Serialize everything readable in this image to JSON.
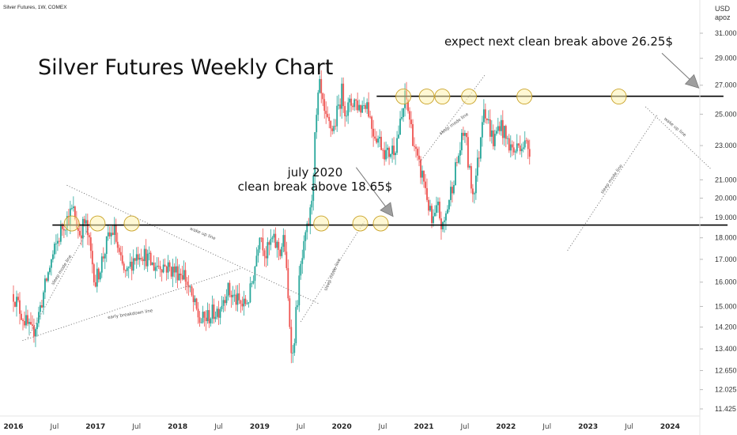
{
  "header": {
    "symbol": "Silver Futures, 1W, COMEX",
    "currency": "USD",
    "unit": "apoz"
  },
  "chart_data": {
    "type": "candlestick",
    "title": "Silver Futures Weekly Chart",
    "ylim": [
      11.1,
      32.5
    ],
    "y_scale": "log",
    "y_ticks": [
      "31.000",
      "29.000",
      "27.000",
      "25.000",
      "23.000",
      "21.000",
      "20.000",
      "19.000",
      "18.000",
      "17.000",
      "16.000",
      "15.000",
      "14.200",
      "13.400",
      "12.650",
      "12.025",
      "11.425"
    ],
    "x_ticks": [
      {
        "label": "2016",
        "year": true
      },
      {
        "label": "Jul",
        "year": false
      },
      {
        "label": "2017",
        "year": true
      },
      {
        "label": "Jul",
        "year": false
      },
      {
        "label": "2018",
        "year": true
      },
      {
        "label": "Jul",
        "year": false
      },
      {
        "label": "2019",
        "year": true
      },
      {
        "label": "Jul",
        "year": false
      },
      {
        "label": "2020",
        "year": true
      },
      {
        "label": "Jul",
        "year": false
      },
      {
        "label": "2021",
        "year": true
      },
      {
        "label": "Jul",
        "year": false
      },
      {
        "label": "2022",
        "year": true
      },
      {
        "label": "Jul",
        "year": false
      },
      {
        "label": "2023",
        "year": true
      },
      {
        "label": "Jul",
        "year": false
      },
      {
        "label": "2024",
        "year": true
      }
    ],
    "colors": {
      "up": "#26a69a",
      "down": "#ef5350",
      "line": "#000000",
      "dotted": "#777777",
      "circle_fill": "#fff3b0",
      "circle_stroke": "#c9a227",
      "arrow": "#9e9e9e"
    },
    "price_path": [
      {
        "t": 0,
        "p": 15.5
      },
      {
        "t": 0.2,
        "p": 14.7
      },
      {
        "t": 0.45,
        "p": 13.9
      },
      {
        "t": 0.6,
        "p": 14.6
      },
      {
        "t": 0.9,
        "p": 16.8
      },
      {
        "t": 1.2,
        "p": 18.6
      },
      {
        "t": 1.45,
        "p": 19.4
      },
      {
        "t": 1.6,
        "p": 18.2
      },
      {
        "t": 1.75,
        "p": 18.8
      },
      {
        "t": 2.0,
        "p": 16.0
      },
      {
        "t": 2.1,
        "p": 16.6
      },
      {
        "t": 2.3,
        "p": 17.9
      },
      {
        "t": 2.45,
        "p": 18.4
      },
      {
        "t": 2.6,
        "p": 16.9
      },
      {
        "t": 2.75,
        "p": 16.2
      },
      {
        "t": 2.9,
        "p": 17.0
      },
      {
        "t": 3.1,
        "p": 17.4
      },
      {
        "t": 3.4,
        "p": 16.7
      },
      {
        "t": 3.6,
        "p": 16.8
      },
      {
        "t": 3.9,
        "p": 16.5
      },
      {
        "t": 4.15,
        "p": 16.4
      },
      {
        "t": 4.35,
        "p": 15.3
      },
      {
        "t": 4.55,
        "p": 14.4
      },
      {
        "t": 4.75,
        "p": 14.6
      },
      {
        "t": 5.0,
        "p": 14.9
      },
      {
        "t": 5.2,
        "p": 15.7
      },
      {
        "t": 5.45,
        "p": 15.2
      },
      {
        "t": 5.6,
        "p": 15.0
      },
      {
        "t": 5.75,
        "p": 15.4
      },
      {
        "t": 5.9,
        "p": 16.9
      },
      {
        "t": 6.0,
        "p": 18.4
      },
      {
        "t": 6.15,
        "p": 17.2
      },
      {
        "t": 6.3,
        "p": 17.9
      },
      {
        "t": 6.5,
        "p": 17.4
      },
      {
        "t": 6.6,
        "p": 18.0
      },
      {
        "t": 6.7,
        "p": 15.0
      },
      {
        "t": 6.8,
        "p": 13.0
      },
      {
        "t": 6.9,
        "p": 15.0
      },
      {
        "t": 7.0,
        "p": 16.6
      },
      {
        "t": 7.15,
        "p": 18.3
      },
      {
        "t": 7.25,
        "p": 19.4
      },
      {
        "t": 7.35,
        "p": 23.5
      },
      {
        "t": 7.45,
        "p": 27.0
      },
      {
        "t": 7.6,
        "p": 24.5
      },
      {
        "t": 7.8,
        "p": 24.0
      },
      {
        "t": 8.0,
        "p": 26.5
      },
      {
        "t": 8.1,
        "p": 25.2
      },
      {
        "t": 8.3,
        "p": 26.0
      },
      {
        "t": 8.45,
        "p": 25.4
      },
      {
        "t": 8.6,
        "p": 26.0
      },
      {
        "t": 8.75,
        "p": 24.0
      },
      {
        "t": 8.95,
        "p": 23.2
      },
      {
        "t": 9.1,
        "p": 22.4
      },
      {
        "t": 9.3,
        "p": 23.0
      },
      {
        "t": 9.45,
        "p": 24.5
      },
      {
        "t": 9.55,
        "p": 26.3
      },
      {
        "t": 9.7,
        "p": 24.0
      },
      {
        "t": 9.85,
        "p": 21.9
      },
      {
        "t": 10.0,
        "p": 21.0
      },
      {
        "t": 10.1,
        "p": 19.8
      },
      {
        "t": 10.2,
        "p": 18.6
      },
      {
        "t": 10.35,
        "p": 19.5
      },
      {
        "t": 10.45,
        "p": 18.3
      },
      {
        "t": 10.6,
        "p": 19.8
      },
      {
        "t": 10.75,
        "p": 21.4
      },
      {
        "t": 10.9,
        "p": 23.0
      },
      {
        "t": 11.0,
        "p": 24.0
      },
      {
        "t": 11.1,
        "p": 21.5
      },
      {
        "t": 11.2,
        "p": 20.2
      },
      {
        "t": 11.35,
        "p": 22.6
      },
      {
        "t": 11.45,
        "p": 25.9
      },
      {
        "t": 11.55,
        "p": 24.6
      },
      {
        "t": 11.7,
        "p": 23.2
      },
      {
        "t": 11.85,
        "p": 24.5
      },
      {
        "t": 12.0,
        "p": 23.4
      },
      {
        "t": 12.2,
        "p": 22.6
      },
      {
        "t": 12.35,
        "p": 23.2
      },
      {
        "t": 12.5,
        "p": 23.0
      },
      {
        "t": 12.6,
        "p": 22.8
      }
    ],
    "hlines": [
      {
        "name": "support-line",
        "p": 18.62,
        "t0": 0.95,
        "t1": 17.4
      },
      {
        "name": "resistance-line",
        "p": 26.22,
        "t0": 8.85,
        "t1": 17.3
      }
    ],
    "dotted_lines": [
      {
        "name": "sleep-mode-line-1",
        "t0": 0.35,
        "p0": 13.8,
        "t1": 1.9,
        "p1": 18.7
      },
      {
        "name": "wake-up-line-1",
        "t0": 1.3,
        "p0": 20.7,
        "t1": 7.45,
        "p1": 15.1
      },
      {
        "name": "early-breakdown-line",
        "t0": 0.22,
        "p0": 13.7,
        "t1": 5.55,
        "p1": 16.6
      },
      {
        "name": "sleep-mode-line-2",
        "t0": 7.0,
        "p0": 14.4,
        "t1": 8.55,
        "p1": 18.8
      },
      {
        "name": "sleep-mode-line-3",
        "t0": 9.9,
        "p0": 22.0,
        "t1": 11.5,
        "p1": 27.8
      },
      {
        "name": "sleep-mode-line-4",
        "t0": 13.5,
        "p0": 17.4,
        "t1": 15.7,
        "p1": 25.0
      },
      {
        "name": "wake-up-line-2",
        "t0": 15.4,
        "p0": 25.5,
        "t1": 17.0,
        "p1": 21.6
      }
    ],
    "dotted_labels": [
      {
        "text": "sleep mode line",
        "t": 1.2,
        "p": 16.5,
        "angle": -58
      },
      {
        "text": "wake up line",
        "t": 4.6,
        "p": 18.15,
        "angle": 22
      },
      {
        "text": "early breakdown line",
        "t": 2.85,
        "p": 14.65,
        "angle": -9
      },
      {
        "text": "sleep mode line",
        "t": 7.8,
        "p": 16.3,
        "angle": -66
      },
      {
        "text": "sleep mode line",
        "t": 10.75,
        "p": 24.3,
        "angle": -36
      },
      {
        "text": "sleep mode line",
        "t": 14.6,
        "p": 21.0,
        "angle": -55
      },
      {
        "text": "wake up line",
        "t": 16.1,
        "p": 24.1,
        "angle": 40
      }
    ],
    "circles": [
      {
        "t": 1.42,
        "p": 18.7
      },
      {
        "t": 2.05,
        "p": 18.7
      },
      {
        "t": 2.88,
        "p": 18.7
      },
      {
        "t": 7.5,
        "p": 18.7
      },
      {
        "t": 8.45,
        "p": 18.7
      },
      {
        "t": 8.95,
        "p": 18.7
      },
      {
        "t": 9.5,
        "p": 26.2
      },
      {
        "t": 10.07,
        "p": 26.2
      },
      {
        "t": 10.45,
        "p": 26.2
      },
      {
        "t": 11.1,
        "p": 26.2
      },
      {
        "t": 12.45,
        "p": 26.2
      },
      {
        "t": 14.75,
        "p": 26.2
      }
    ],
    "annotations": [
      {
        "name": "annotation-july-2020",
        "lines": [
          "july 2020",
          "clean break above 18.65$"
        ],
        "t": 7.35,
        "p": 21.2,
        "size": 15,
        "anchor": "middle"
      },
      {
        "name": "annotation-next-break",
        "lines": [
          "expect next clean break above 26.25$"
        ],
        "t": 10.5,
        "p": 30.0,
        "size": 15,
        "anchor": "start"
      }
    ],
    "arrows": [
      {
        "name": "arrow-july-2020",
        "from": {
          "t": 8.35,
          "p": 21.7
        },
        "to": {
          "t": 9.25,
          "p": 19.05
        }
      },
      {
        "name": "arrow-next-break",
        "from": {
          "t": 15.8,
          "p": 29.4
        },
        "to": {
          "t": 16.7,
          "p": 26.8
        }
      }
    ]
  }
}
